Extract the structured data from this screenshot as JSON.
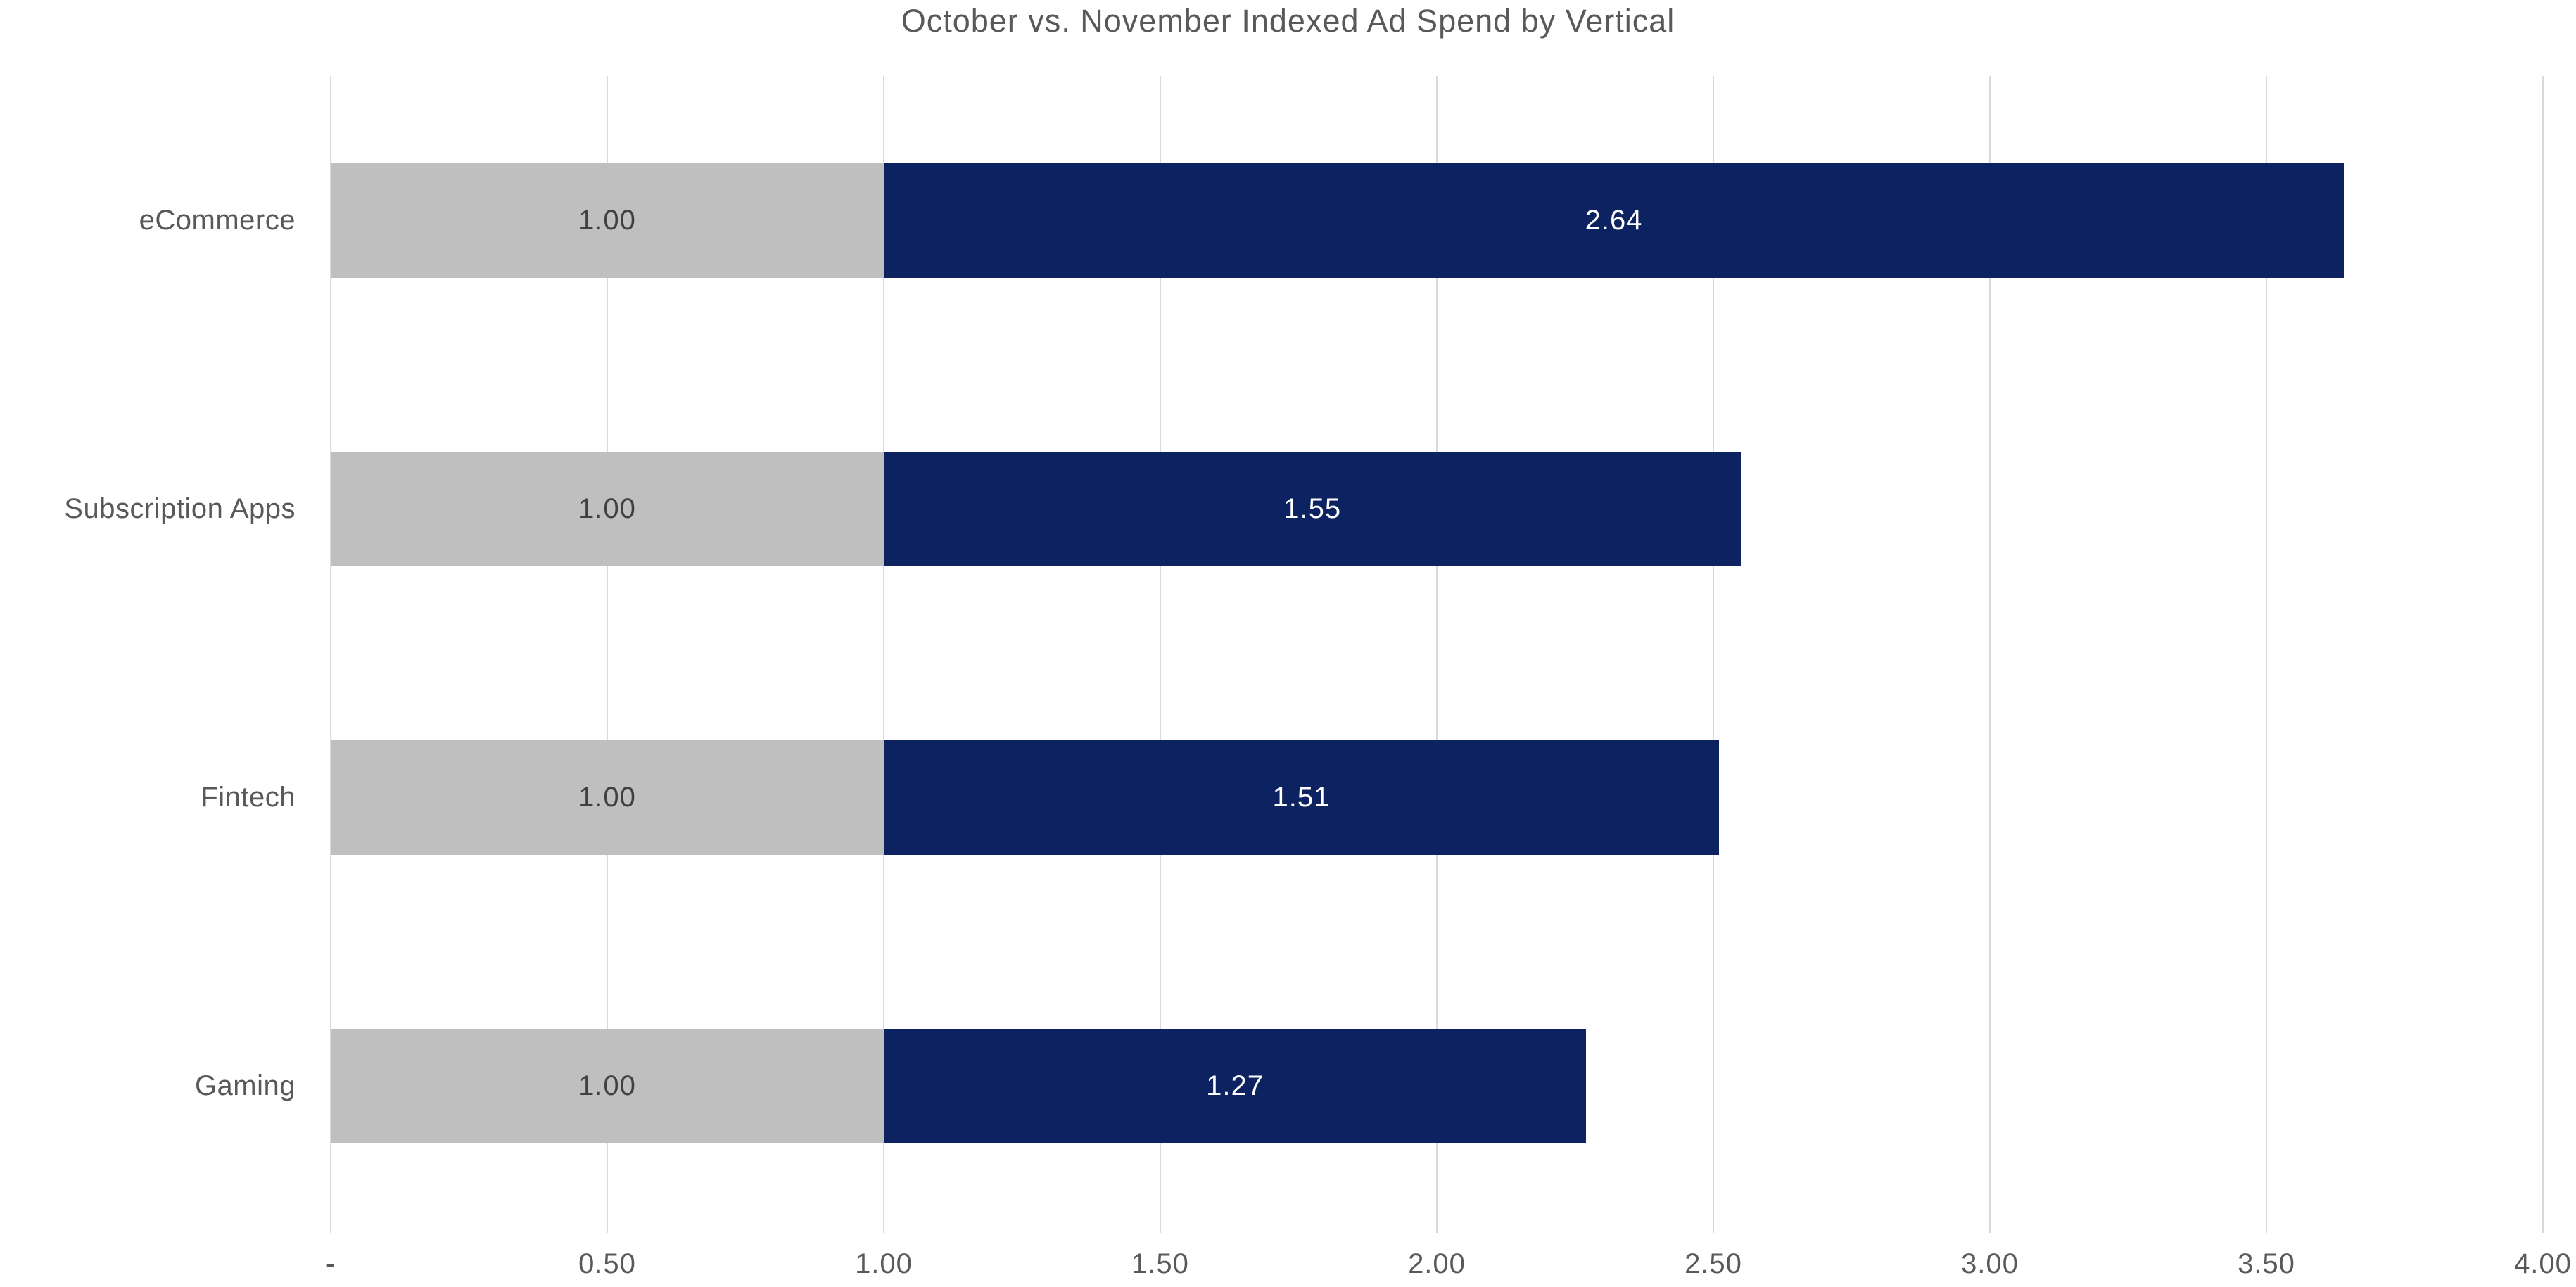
{
  "chart_data": {
    "type": "bar",
    "orientation": "horizontal",
    "stacked": true,
    "title": "October vs. November Indexed Ad Spend by Vertical",
    "categories": [
      "eCommerce",
      "Subscription Apps",
      "Fintech",
      "Gaming"
    ],
    "series": [
      {
        "name": "October",
        "color": "#BFBFBF",
        "label_color": "#404040",
        "values": [
          1.0,
          1.0,
          1.0,
          1.0
        ],
        "labels": [
          "1.00",
          "1.00",
          "1.00",
          "1.00"
        ]
      },
      {
        "name": "November",
        "color": "#0C2261",
        "label_color": "#FFFFFF",
        "values": [
          2.64,
          1.55,
          1.51,
          1.27
        ],
        "labels": [
          "2.64",
          "1.55",
          "1.51",
          "1.27"
        ]
      }
    ],
    "xlim": [
      0,
      4
    ],
    "x_ticks": [
      {
        "value": 0.0,
        "label": "-"
      },
      {
        "value": 0.5,
        "label": "0.50"
      },
      {
        "value": 1.0,
        "label": "1.00"
      },
      {
        "value": 1.5,
        "label": "1.50"
      },
      {
        "value": 2.0,
        "label": "2.00"
      },
      {
        "value": 2.5,
        "label": "2.50"
      },
      {
        "value": 3.0,
        "label": "3.00"
      },
      {
        "value": 3.5,
        "label": "3.50"
      },
      {
        "value": 4.0,
        "label": "4.00"
      }
    ],
    "grid": "vertical-only",
    "legend_position": "none",
    "colors": {
      "background": "#FFFFFF",
      "title_text": "#595959",
      "axis_text": "#595959",
      "category_text": "#595959",
      "gridline": "#D9D9D9"
    }
  }
}
